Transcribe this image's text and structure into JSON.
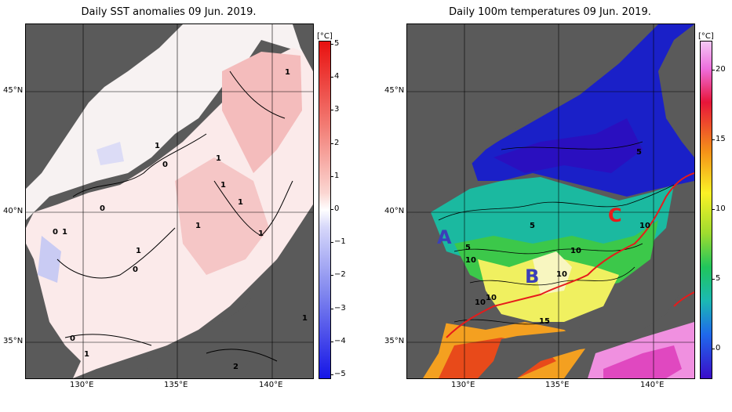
{
  "panels": {
    "left": {
      "title": "Daily SST anomalies 09 Jun. 2019.",
      "colorbar": {
        "unit": "[°C]",
        "ticks": [
          "5",
          "4",
          "3",
          "2",
          "1",
          "0",
          "−1",
          "−2",
          "−3",
          "−4",
          "−5"
        ],
        "colors": {
          "max": "#e8100f",
          "zero": "#ffffff",
          "min": "#1515e6"
        }
      },
      "contour_labels": [
        "1",
        "0",
        "1",
        "1",
        "0",
        "1",
        "1",
        "1",
        "1",
        "0",
        "1",
        "1",
        "1",
        "0",
        "0",
        "1",
        "2"
      ]
    },
    "right": {
      "title": "Daily 100m temperatures 09 Jun. 2019.",
      "colorbar": {
        "unit": "[°C]",
        "ticks": [
          "20",
          "15",
          "10",
          "5",
          "0"
        ],
        "colors": {
          "warm": "#e8153a",
          "mid": "#fbf226",
          "cool": "#20c55c",
          "cold": "#3a0dc9"
        }
      },
      "markers": [
        "A",
        "B",
        "C"
      ],
      "marker_colors": {
        "A": "#3b3fb8",
        "B": "#3b3fb8",
        "C": "#e61b1b"
      },
      "contour_labels": [
        "5",
        "5",
        "5",
        "10",
        "10",
        "10",
        "10",
        "10",
        "10",
        "15"
      ]
    }
  },
  "axes": {
    "lat_labels": [
      "45°N",
      "40°N",
      "35°N"
    ],
    "lon_labels": [
      "130°E",
      "135°E",
      "140°E"
    ]
  }
}
